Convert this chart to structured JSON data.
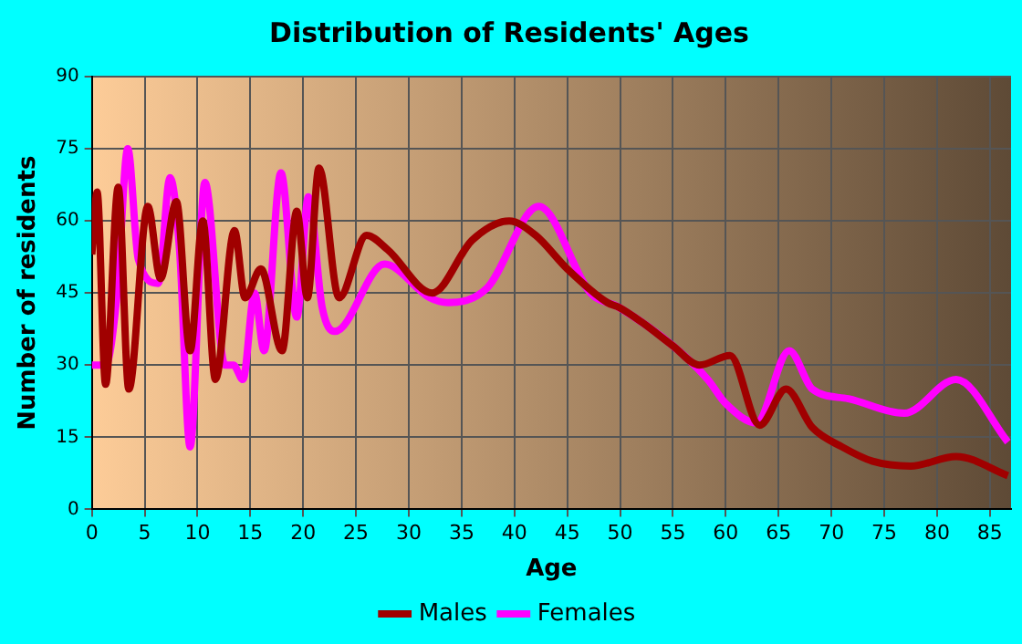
{
  "chart_data": {
    "type": "line",
    "title": "Distribution of Residents' Ages",
    "xlabel": "Age",
    "ylabel": "Number of residents",
    "xlim": [
      0,
      87
    ],
    "xticks": [
      0,
      5,
      10,
      15,
      20,
      25,
      30,
      35,
      40,
      45,
      50,
      55,
      60,
      65,
      70,
      75,
      80,
      85
    ],
    "ylim": [
      0,
      90
    ],
    "yticks": [
      0,
      15,
      30,
      45,
      60,
      75,
      90
    ],
    "grid": true,
    "legend": "bottom",
    "marker": "none",
    "line_style": "solid",
    "series": [
      {
        "name": "Males",
        "color": "#a00000",
        "x": [
          0,
          0.5,
          1.3,
          2.5,
          3.5,
          5.3,
          6.5,
          8,
          9.3,
          10.5,
          11.7,
          13.5,
          14.5,
          16,
          18,
          19.4,
          20.4,
          21.5,
          23.4,
          26,
          28,
          32.2,
          36,
          39.5,
          42,
          45,
          48.8,
          49.9,
          52,
          55,
          57.5,
          60.4,
          63.2,
          65.7,
          68.2,
          71,
          73.9,
          77.5,
          81.8,
          86.7
        ],
        "values": [
          53,
          66,
          26,
          67,
          25,
          63,
          48,
          64,
          33,
          60,
          27,
          58,
          44,
          50,
          33,
          62,
          44,
          71,
          44,
          57,
          54,
          45,
          56,
          60,
          57,
          50,
          43,
          42,
          39,
          34,
          30,
          32,
          17.5,
          25,
          17,
          13,
          10,
          9,
          11,
          7
        ]
      },
      {
        "name": "Females",
        "color": "#ff00ff",
        "x": [
          0,
          1.3,
          2.4,
          3.4,
          4.4,
          6.3,
          7.4,
          8.3,
          9.3,
          10.7,
          12.6,
          13.4,
          14.3,
          15.4,
          16.3,
          17.9,
          19.4,
          20.5,
          21.8,
          23,
          27.7,
          32,
          33.7,
          37.4,
          42.3,
          47.2,
          49.9,
          55,
          58.3,
          60,
          62.9,
          66,
          68.2,
          71.6,
          76.9,
          81.8,
          86.7
        ],
        "values": [
          30,
          30,
          45,
          75,
          52,
          47,
          69,
          54,
          13,
          68,
          30,
          30,
          27,
          45,
          33,
          70,
          40,
          65,
          42,
          37,
          51,
          44,
          43,
          46,
          63,
          45,
          42,
          34,
          27,
          22,
          18,
          33,
          25,
          23,
          20,
          27,
          14
        ]
      }
    ]
  }
}
